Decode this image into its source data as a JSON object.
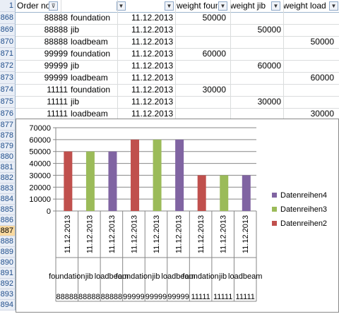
{
  "header": {
    "row_label": "1",
    "columns": [
      "Order no.",
      "",
      "",
      "weight foundation",
      "weight jib",
      "weight loadbeam"
    ],
    "col_display": [
      "Order no.",
      "",
      "",
      "weight four",
      "weight jib",
      "weight load"
    ]
  },
  "rows": [
    {
      "n": "868",
      "order": "88888",
      "part": "foundation",
      "date": "11.12.2013",
      "wf": "50000",
      "wj": "",
      "wl": ""
    },
    {
      "n": "869",
      "order": "88888",
      "part": "jib",
      "date": "11.12.2013",
      "wf": "",
      "wj": "50000",
      "wl": ""
    },
    {
      "n": "870",
      "order": "88888",
      "part": "loadbeam",
      "date": "11.12.2013",
      "wf": "",
      "wj": "",
      "wl": "50000"
    },
    {
      "n": "871",
      "order": "99999",
      "part": "foundation",
      "date": "11.12.2013",
      "wf": "60000",
      "wj": "",
      "wl": ""
    },
    {
      "n": "872",
      "order": "99999",
      "part": "jib",
      "date": "11.12.2013",
      "wf": "",
      "wj": "60000",
      "wl": ""
    },
    {
      "n": "873",
      "order": "99999",
      "part": "loadbeam",
      "date": "11.12.2013",
      "wf": "",
      "wj": "",
      "wl": "60000"
    },
    {
      "n": "874",
      "order": "11111",
      "part": "foundation",
      "date": "11.12.2013",
      "wf": "30000",
      "wj": "",
      "wl": ""
    },
    {
      "n": "875",
      "order": "11111",
      "part": "jib",
      "date": "11.12.2013",
      "wf": "",
      "wj": "30000",
      "wl": ""
    },
    {
      "n": "876",
      "order": "11111",
      "part": "loadbeam",
      "date": "11.12.2013",
      "wf": "",
      "wj": "",
      "wl": "30000"
    }
  ],
  "chart_rows": [
    "877",
    "878",
    "879",
    "880",
    "881",
    "882",
    "883",
    "884",
    "885",
    "886",
    "887",
    "888",
    "889",
    "890",
    "891",
    "892",
    "893",
    "894"
  ],
  "selected_row": "887",
  "colors": {
    "red": "#c0504d",
    "green": "#9bbb59",
    "purple": "#8064a2"
  },
  "chart_data": {
    "type": "bar",
    "ylim": [
      0,
      70000
    ],
    "yticks": [
      "0",
      "10000",
      "20000",
      "30000",
      "40000",
      "50000",
      "60000",
      "70000"
    ],
    "categories": [
      {
        "date": "11.12.2013",
        "part": "foundation",
        "order": "88888"
      },
      {
        "date": "11.12.2013",
        "part": "jib",
        "order": "88888"
      },
      {
        "date": "11.12.2013",
        "part": "loadbeam",
        "order": "88888"
      },
      {
        "date": "11.12.2013",
        "part": "foundation",
        "order": "99999"
      },
      {
        "date": "11.12.2013",
        "part": "jib",
        "order": "99999"
      },
      {
        "date": "11.12.2013",
        "part": "loadbeam",
        "order": "99999"
      },
      {
        "date": "11.12.2013",
        "part": "foundation",
        "order": "11111"
      },
      {
        "date": "11.12.2013",
        "part": "jib",
        "order": "11111"
      },
      {
        "date": "11.12.2013",
        "part": "loadbeam",
        "order": "11111"
      }
    ],
    "values": [
      50000,
      50000,
      50000,
      60000,
      60000,
      60000,
      30000,
      30000,
      30000
    ],
    "bar_series": [
      "red",
      "green",
      "purple",
      "red",
      "green",
      "purple",
      "red",
      "green",
      "purple"
    ],
    "legend": [
      {
        "name": "Datenreihen4",
        "color": "purple"
      },
      {
        "name": "Datenreihen3",
        "color": "green"
      },
      {
        "name": "Datenreihen2",
        "color": "red"
      }
    ]
  }
}
